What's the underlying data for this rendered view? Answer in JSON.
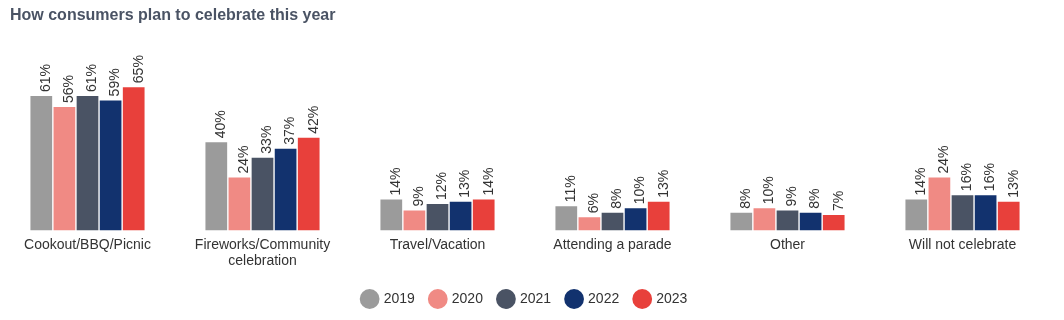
{
  "chart_data": {
    "type": "bar",
    "title": "How consumers plan to celebrate this year",
    "categories": [
      "Cookout/BBQ/Picnic",
      "Fireworks/Community celebration",
      "Travel/Vacation",
      "Attending a parade",
      "Other",
      "Will not celebrate"
    ],
    "series": [
      {
        "name": "2019",
        "color": "#9b9b9b",
        "values": [
          61,
          40,
          14,
          11,
          8,
          14
        ],
        "value_labels": [
          "61%",
          "40%",
          "14%",
          "11%",
          "8%",
          "14%"
        ]
      },
      {
        "name": "2020",
        "color": "#f08a84",
        "values": [
          56,
          24,
          9,
          6,
          10,
          24
        ],
        "value_labels": [
          "56%",
          "24%",
          "9%",
          "6%",
          "10%",
          "24%"
        ]
      },
      {
        "name": "2021",
        "color": "#4a5364",
        "values": [
          61,
          33,
          12,
          8,
          9,
          16
        ],
        "value_labels": [
          "61%",
          "33%",
          "12%",
          "8%",
          "9%",
          "16%"
        ]
      },
      {
        "name": "2022",
        "color": "#12326e",
        "values": [
          59,
          37,
          13,
          10,
          8,
          16
        ],
        "value_labels": [
          "59%",
          "37%",
          "13%",
          "10%",
          "8%",
          "16%"
        ]
      },
      {
        "name": "2023",
        "color": "#e8403b",
        "values": [
          65,
          42,
          14,
          13,
          7,
          13
        ],
        "value_labels": [
          "65%",
          "42%",
          "14%",
          "13%",
          "7%",
          "13%"
        ]
      }
    ],
    "legend": "bottom",
    "marker": "circle"
  }
}
